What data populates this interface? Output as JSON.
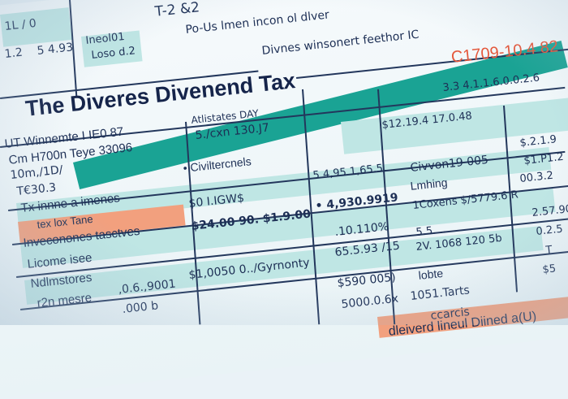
{
  "document": {
    "title": "The Diveres Divenend Tax",
    "header_lines": [
      "T-2 &2",
      "Po-Us lmen incon ol dlver",
      "Divnes winsonert feethor IC"
    ],
    "reference_code": "C1709-10.4 82",
    "top_left": [
      "1L / 0",
      "1.2",
      "5 4.93",
      "Ineol01",
      "Loso d.2"
    ],
    "items": [
      "3.3 4.1.1.6.0.0.2.6",
      "Atlistates DAY",
      "UT Winnemte I IE0 87",
      "5./cxn 130.J7",
      "$12.19.4 17.0.48",
      "Cm H700n Teye 33096",
      "• Civiltercnels",
      "10m,/1D/",
      "5 4,95 1,65.5.",
      "Civvon19 005",
      "Lmhing",
      "T€30.3",
      "Tx innne a imenes",
      "$0 I.IGW$",
      "• 4,930.9919",
      "1Coxens $/5779.6 R",
      "$24.00 90. $1.9.00",
      "tex lox Tane",
      ".10.110%",
      "5.5. ..",
      "2V. 1068 120 5b",
      "Licome isee",
      "65.5.93 /15",
      "$1,0050 0../Gyrnonty",
      "Ndlmstores",
      "$590 005)",
      "lobte",
      "r2n mesre",
      ",0.6.,9001",
      "1051.Tarts",
      ".000 b",
      "5000.0.6x",
      "ccarcis"
    ],
    "highlighted": [
      "Inveconones tasctves",
      "dleiverd lineul Diined a(U)"
    ],
    "right_column": [
      "$.2.1.9",
      "$1.P1.2",
      "00.3.2",
      "2.57.90",
      "0.2.5",
      "T",
      "$5"
    ]
  },
  "colors": {
    "teal": "#1aa394",
    "light_teal": "#bfe6e4",
    "salmon": "#f2a07e",
    "ink": "#1d2f55",
    "red": "#e4583c"
  }
}
